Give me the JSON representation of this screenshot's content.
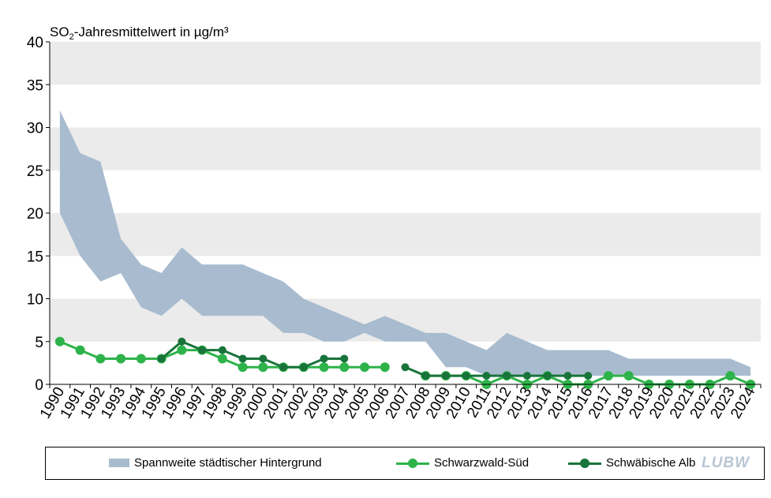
{
  "colors": {
    "band": "#a9bccf",
    "schwarzwald": "#2eb34a",
    "alb": "#18743a",
    "stripe": "#ebebeb"
  },
  "chart_data": {
    "type": "line",
    "title_main": "SO",
    "title_sub": "2",
    "title_rest": "-Jahresmittelwert  in µg/m³",
    "ylim": [
      0,
      40
    ],
    "yticks": [
      0,
      5,
      10,
      15,
      20,
      25,
      30,
      35,
      40
    ],
    "x": [
      "1990",
      "1991",
      "1992",
      "1993",
      "1994",
      "1995",
      "1996",
      "1997",
      "1998",
      "1999",
      "2000",
      "2001",
      "2002",
      "2003",
      "2004",
      "2005",
      "2006",
      "2007",
      "2008",
      "2009",
      "2010",
      "2011",
      "2012",
      "2013",
      "2014",
      "2015",
      "2016",
      "2017",
      "2018",
      "2019",
      "2020",
      "2021",
      "2022",
      "2023",
      "2024"
    ],
    "band": {
      "name": "Spannweite städtischer Hintergrund",
      "low": [
        20,
        15,
        12,
        13,
        9,
        8,
        10,
        8,
        8,
        8,
        8,
        6,
        6,
        5,
        5,
        6,
        5,
        5,
        5,
        2,
        2,
        1,
        1,
        1,
        1,
        1,
        1,
        1,
        1,
        1,
        1,
        1,
        1,
        1,
        1
      ],
      "high": [
        32,
        27,
        26,
        17,
        14,
        13,
        16,
        14,
        14,
        14,
        13,
        12,
        10,
        9,
        8,
        7,
        8,
        7,
        6,
        6,
        5,
        4,
        6,
        5,
        4,
        4,
        4,
        4,
        3,
        3,
        3,
        3,
        3,
        3,
        2
      ]
    },
    "series": [
      {
        "name": "Schwarzwald-Süd",
        "values": [
          5,
          4,
          3,
          3,
          3,
          3,
          4,
          4,
          3,
          2,
          2,
          2,
          2,
          2,
          2,
          2,
          2,
          null,
          1,
          1,
          1,
          0,
          1,
          0,
          1,
          0,
          0,
          1,
          1,
          0,
          0,
          0,
          0,
          1,
          0
        ]
      },
      {
        "name": "Schwäbische Alb",
        "values": [
          null,
          null,
          null,
          null,
          null,
          3,
          5,
          4,
          4,
          3,
          3,
          2,
          2,
          3,
          3,
          null,
          null,
          2,
          1,
          1,
          1,
          1,
          1,
          1,
          1,
          1,
          1,
          null,
          null,
          null,
          null,
          null,
          null,
          null,
          null
        ]
      }
    ]
  },
  "legend": {
    "band_label": "Spannweite städtischer Hintergrund",
    "schwarzwald_label": "Schwarzwald-Süd",
    "alb_label": "Schwäbische Alb"
  },
  "logo_text": "LUBW"
}
